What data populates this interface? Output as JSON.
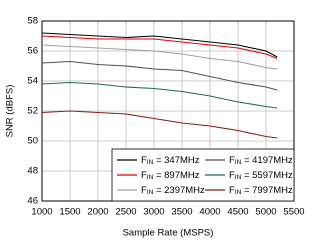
{
  "chart_data": {
    "type": "line",
    "xlabel": "Sample Rate (MSPS)",
    "ylabel": "SNR (dBFS)",
    "x": [
      1000,
      1500,
      2000,
      2500,
      3000,
      3500,
      4000,
      4500,
      5000,
      5200
    ],
    "series": [
      {
        "name": "FIN = 347MHz",
        "color": "#000000",
        "values": [
          57.2,
          57.1,
          57.0,
          56.9,
          57.0,
          56.8,
          56.6,
          56.4,
          56.0,
          55.6
        ]
      },
      {
        "name": "FIN = 897MHz",
        "color": "#e00000",
        "values": [
          57.0,
          56.9,
          56.8,
          56.8,
          56.8,
          56.6,
          56.4,
          56.2,
          55.8,
          55.5
        ]
      },
      {
        "name": "FIN = 2397MHz",
        "color": "#a0a0a0",
        "values": [
          56.4,
          56.3,
          56.2,
          56.1,
          56.0,
          55.8,
          55.5,
          55.3,
          54.9,
          54.8
        ]
      },
      {
        "name": "FIN = 4197MHz",
        "color": "#505050",
        "values": [
          55.2,
          55.3,
          55.1,
          55.0,
          54.8,
          54.7,
          54.3,
          53.9,
          53.6,
          53.4
        ]
      },
      {
        "name": "FIN = 5597MHz",
        "color": "#1e6a55",
        "values": [
          53.8,
          53.9,
          53.8,
          53.6,
          53.5,
          53.3,
          53.0,
          52.6,
          52.3,
          52.2
        ]
      },
      {
        "name": "FIN = 7997MHz",
        "color": "#8b1a1a",
        "values": [
          51.9,
          52.0,
          51.9,
          51.8,
          51.5,
          51.2,
          51.0,
          50.7,
          50.3,
          50.2
        ]
      }
    ],
    "xlim": [
      1000,
      5500
    ],
    "xticks": [
      1000,
      1500,
      2000,
      2500,
      3000,
      3500,
      4000,
      4500,
      5000,
      5500
    ],
    "ylim": [
      46,
      58
    ],
    "yticks": [
      46,
      48,
      50,
      52,
      54,
      56,
      58
    ],
    "grid": true,
    "legend": "lower right"
  }
}
